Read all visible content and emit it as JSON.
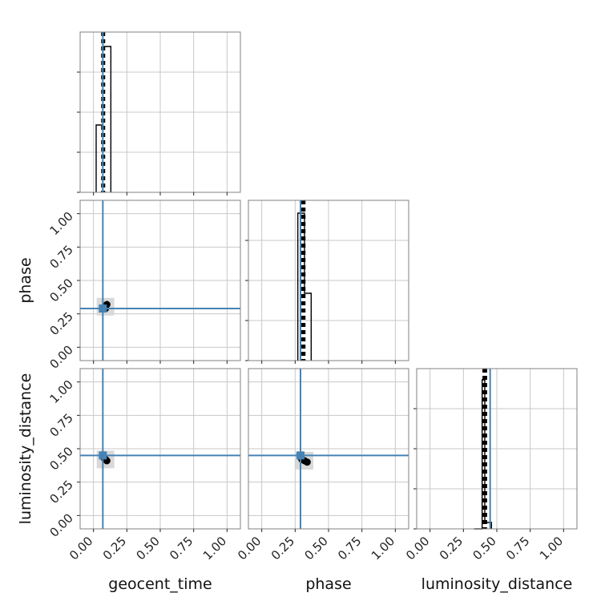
{
  "chart_data": {
    "type": "corner",
    "parameters": [
      "geocent_time",
      "phase",
      "luminosity_distance"
    ],
    "axis_labels": {
      "x": [
        "geocent_time",
        "phase",
        "luminosity_distance"
      ],
      "y": [
        "",
        "phase",
        "luminosity_distance"
      ]
    },
    "range": [
      -0.1,
      1.1
    ],
    "ticks": [
      0.0,
      0.25,
      0.5,
      0.75,
      1.0
    ],
    "tick_labels": [
      "0.00",
      "0.25",
      "0.50",
      "0.75",
      "1.00"
    ],
    "grid": true,
    "truths": [
      0.07,
      0.29,
      0.45
    ],
    "truth_color": "#4682b4",
    "histograms": [
      {
        "parameter": "geocent_time",
        "bins": [
          0.02,
          0.07,
          0.13
        ],
        "counts": [
          0.42,
          0.91
        ],
        "quantiles": [
          0.065,
          0.075,
          0.08
        ]
      },
      {
        "parameter": "phase",
        "bins": [
          0.27,
          0.32,
          0.37
        ],
        "counts": [
          0.92,
          0.42
        ],
        "quantiles": [
          0.3,
          0.31,
          0.32
        ]
      },
      {
        "parameter": "luminosity_distance",
        "bins": [
          0.33,
          0.39,
          0.41,
          0.46
        ],
        "counts": [
          0.0,
          0.93,
          0.04
        ],
        "quantiles": [
          0.4,
          0.41,
          0.42
        ]
      }
    ],
    "scatter": [
      {
        "x_param": "geocent_time",
        "y_param": "phase",
        "points": [
          [
            0.08,
            0.3
          ],
          [
            0.1,
            0.32
          ],
          [
            0.09,
            0.29
          ]
        ]
      },
      {
        "x_param": "geocent_time",
        "y_param": "luminosity_distance",
        "points": [
          [
            0.08,
            0.43
          ],
          [
            0.1,
            0.41
          ],
          [
            0.09,
            0.42
          ]
        ]
      },
      {
        "x_param": "phase",
        "y_param": "luminosity_distance",
        "points": [
          [
            0.3,
            0.42
          ],
          [
            0.34,
            0.4
          ],
          [
            0.32,
            0.41
          ]
        ]
      }
    ]
  }
}
